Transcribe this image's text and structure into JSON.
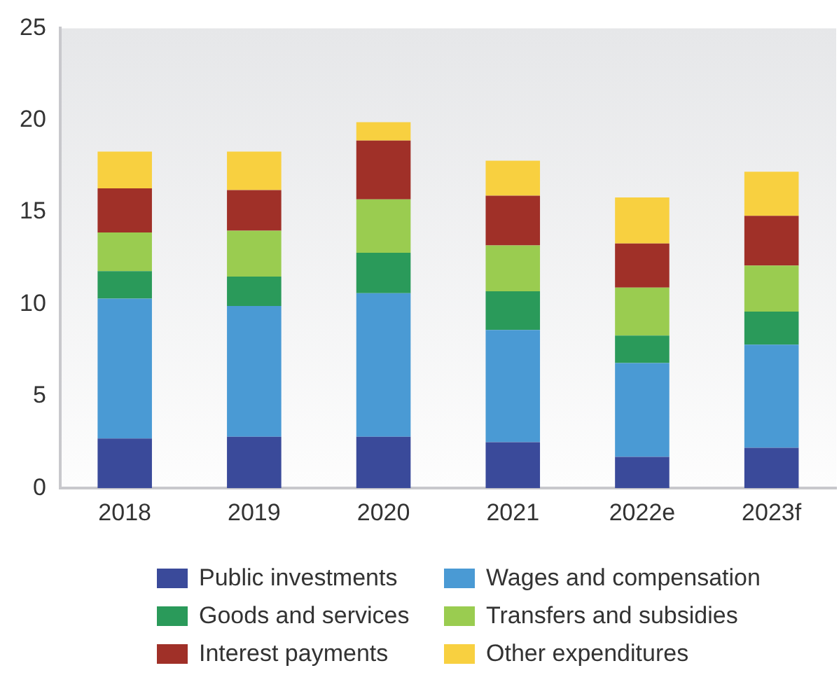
{
  "chart_data": {
    "type": "bar",
    "stacked": true,
    "categories": [
      "2018",
      "2019",
      "2020",
      "2021",
      "2022e",
      "2023f"
    ],
    "series": [
      {
        "name": "Public investments",
        "color": "#3a4a9a",
        "values": [
          2.7,
          2.8,
          2.8,
          2.5,
          1.7,
          2.2
        ]
      },
      {
        "name": "Wages and compensation",
        "color": "#4a9ad4",
        "values": [
          7.6,
          7.1,
          7.8,
          6.1,
          5.1,
          5.6
        ]
      },
      {
        "name": "Goods and services",
        "color": "#2a9a5a",
        "values": [
          1.5,
          1.6,
          2.2,
          2.1,
          1.5,
          1.8
        ]
      },
      {
        "name": "Transfers and subsidies",
        "color": "#9acc50",
        "values": [
          2.1,
          2.5,
          2.9,
          2.5,
          2.6,
          2.5
        ]
      },
      {
        "name": "Interest payments",
        "color": "#a03028",
        "values": [
          2.4,
          2.2,
          3.2,
          2.7,
          2.4,
          2.7
        ]
      },
      {
        "name": "Other expenditures",
        "color": "#f8d040",
        "values": [
          2.0,
          2.1,
          1.0,
          1.9,
          2.5,
          2.4
        ]
      }
    ],
    "ylim": [
      0,
      25
    ],
    "yticks": [
      0,
      5,
      10,
      15,
      20,
      25
    ],
    "grid": false,
    "legend": "bottom"
  }
}
